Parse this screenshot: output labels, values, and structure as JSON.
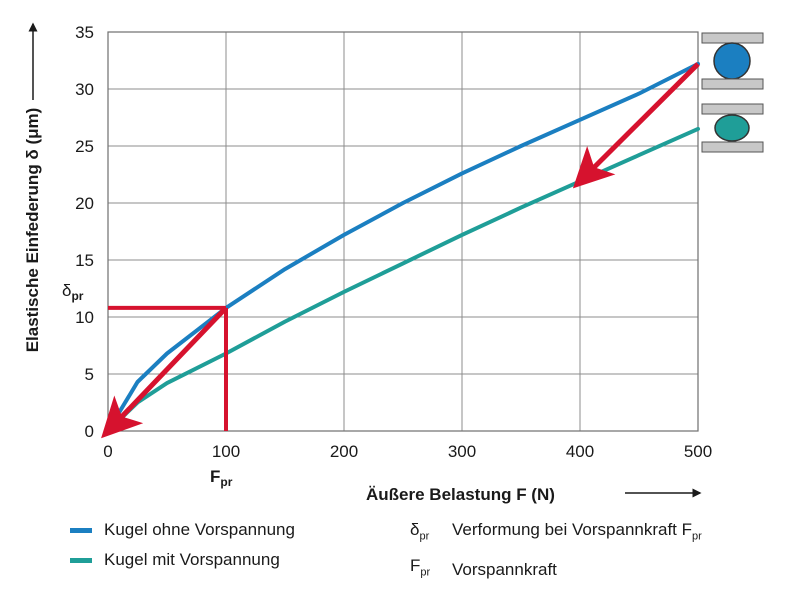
{
  "chart_data": {
    "type": "line",
    "ylabel": "Elastische Einfederung δ (μm)",
    "xlabel": "Äußere Belastung F (N)",
    "xlim": [
      0,
      500
    ],
    "ylim": [
      0,
      35
    ],
    "xticks": [
      0,
      100,
      200,
      300,
      400,
      500
    ],
    "yticks": [
      0,
      5,
      10,
      15,
      20,
      25,
      30,
      35
    ],
    "grid": true,
    "series": [
      {
        "name": "Kugel ohne Vorspannung",
        "color": "#1b7fc1",
        "x": [
          0,
          25,
          50,
          100,
          150,
          200,
          250,
          300,
          350,
          400,
          450,
          500
        ],
        "y": [
          0,
          4.3,
          6.8,
          10.8,
          14.2,
          17.2,
          20.0,
          22.6,
          25.0,
          27.3,
          29.6,
          32.2
        ]
      },
      {
        "name": "Kugel mit Vorspannung",
        "color": "#1f9e98",
        "x": [
          0,
          25,
          50,
          100,
          150,
          200,
          250,
          300,
          350,
          400,
          450,
          500
        ],
        "y": [
          0,
          2.5,
          4.2,
          6.8,
          9.6,
          12.2,
          14.7,
          17.2,
          19.6,
          21.9,
          24.2,
          26.5
        ]
      }
    ],
    "annotations": {
      "delta_pr": {
        "label": "δ",
        "sub": "pr",
        "value": 10.8
      },
      "F_pr": {
        "label": "F",
        "sub": "pr",
        "value": 100
      },
      "arrow_color": "#d6122e",
      "arrows": [
        {
          "from": [
            100,
            10.8
          ],
          "to": [
            0,
            0
          ]
        },
        {
          "from": [
            500,
            32.2
          ],
          "to": [
            400,
            21.9
          ]
        }
      ]
    }
  },
  "legend": {
    "items": [
      {
        "label": "Kugel ohne Vorspannung",
        "color": "#1b7fc1"
      },
      {
        "label": "Kugel mit Vorspannung",
        "color": "#1f9e98"
      }
    ],
    "symbols": [
      {
        "sym": "δ",
        "sub": "pr",
        "text": "Verformung bei Vorspannkraft F",
        "text_sub": "pr"
      },
      {
        "sym": "F",
        "sub": "pr",
        "text": "Vorspannkraft",
        "text_sub": ""
      }
    ]
  },
  "icons": {
    "top_ball": {
      "name": "ball-unloaded-icon",
      "color": "#1b7fc1"
    },
    "bottom_ball": {
      "name": "ball-compressed-icon",
      "color": "#1f9e98"
    },
    "plate_color": "#c8c8c8"
  }
}
